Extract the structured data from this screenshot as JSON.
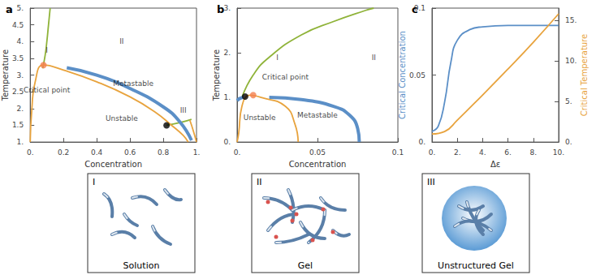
{
  "chart_data": [
    {
      "title": "a",
      "type": "line",
      "x_label": "Concentration",
      "y_label": "Temperature",
      "xlim": [
        0,
        1
      ],
      "ylim": [
        1,
        5
      ],
      "xticks": [
        {
          "value": 0,
          "label": "0."
        },
        0.2,
        0.4,
        0.6,
        0.8,
        {
          "value": 1,
          "label": "1."
        }
      ],
      "yticks": [
        {
          "value": 1,
          "label": "1."
        },
        1.5,
        {
          "value": 2,
          "label": "2."
        },
        2.5,
        {
          "value": 3,
          "label": "3."
        },
        3.5,
        {
          "value": 4,
          "label": "4."
        },
        4.5,
        {
          "value": 5,
          "label": "5."
        }
      ],
      "series": [
        {
          "color": "#8fb339",
          "x": [
            0.075,
            0.09,
            0.1,
            0.11,
            0.12
          ],
          "values": [
            3.2,
            3.6,
            4.0,
            4.5,
            5.0
          ]
        },
        {
          "color": "#8fb339",
          "x": [
            0.82,
            0.9,
            0.97
          ],
          "values": [
            1.5,
            1.58,
            1.68
          ]
        },
        {
          "color": "#e8a33d",
          "x": [
            0.0,
            0.01,
            0.03,
            0.08,
            0.2,
            0.4,
            0.6,
            0.75,
            0.85,
            0.92,
            0.95
          ],
          "values": [
            1.0,
            2.0,
            2.8,
            3.3,
            3.15,
            2.8,
            2.35,
            1.9,
            1.5,
            1.2,
            1.0
          ]
        },
        {
          "color": "#e8a33d",
          "x": [
            0.96,
            0.98,
            1.0
          ],
          "values": [
            1.65,
            1.35,
            1.0
          ]
        },
        {
          "color": "#5b8fc7",
          "line_style": "thick",
          "x": [
            0.22,
            0.4,
            0.6,
            0.8,
            0.9,
            0.97
          ],
          "values": [
            3.22,
            3.0,
            2.6,
            2.05,
            1.6,
            1.05
          ]
        },
        {
          "type": "scatter",
          "color": "#f47f4f",
          "x": [
            0.08
          ],
          "values": [
            3.3
          ]
        },
        {
          "type": "scatter",
          "color": "#000000",
          "x": [
            0.82
          ],
          "values": [
            1.5
          ]
        }
      ],
      "annotations": [
        {
          "text": "I",
          "x": 0.1,
          "y": 3.75
        },
        {
          "text": "II",
          "x": 0.55,
          "y": 4.0
        },
        {
          "text": "III",
          "x": 0.92,
          "y": 1.95
        },
        {
          "text": "Critical point",
          "x": 0.1,
          "y": 2.55
        },
        {
          "text": "Metastable",
          "x": 0.62,
          "y": 2.75
        },
        {
          "text": "Unstable",
          "x": 0.55,
          "y": 1.7
        }
      ]
    },
    {
      "title": "b",
      "type": "line",
      "x_label": "Concentration",
      "y_label": "Temperature",
      "xlim": [
        0,
        0.1
      ],
      "ylim": [
        0,
        3
      ],
      "xticks": [
        {
          "value": 0,
          "label": "0."
        },
        0.05,
        0.1
      ],
      "yticks": [
        {
          "value": 0,
          "label": "0."
        },
        {
          "value": 1,
          "label": "1."
        },
        {
          "value": 2,
          "label": "2."
        },
        {
          "value": 3,
          "label": "3."
        }
      ],
      "series": [
        {
          "color": "#8fb339",
          "x": [
            0.003,
            0.01,
            0.02,
            0.04,
            0.06,
            0.08,
            0.085
          ],
          "values": [
            1.0,
            1.5,
            1.9,
            2.4,
            2.7,
            2.95,
            3.0
          ]
        },
        {
          "color": "#e8a33d",
          "x": [
            0.0,
            0.001,
            0.003,
            0.008,
            0.015,
            0.03,
            0.036,
            0.038
          ],
          "values": [
            0.0,
            0.2,
            0.8,
            1.05,
            1.0,
            0.8,
            0.4,
            0.0
          ]
        },
        {
          "color": "#5b8fc7",
          "line_style": "thick",
          "x": [
            0.0,
            0.002,
            0.004
          ],
          "values": [
            0.93,
            0.98,
            1.0
          ]
        },
        {
          "color": "#5b8fc7",
          "line_style": "thick",
          "x": [
            0.02,
            0.04,
            0.06,
            0.07,
            0.075,
            0.076
          ],
          "values": [
            1.0,
            0.95,
            0.8,
            0.6,
            0.3,
            0.0
          ]
        },
        {
          "type": "scatter",
          "color": "#f47f4f",
          "x": [
            0.01
          ],
          "values": [
            1.05
          ]
        },
        {
          "type": "scatter",
          "color": "#000000",
          "x": [
            0.005
          ],
          "values": [
            1.02
          ]
        }
      ],
      "annotations": [
        {
          "text": "I",
          "x": 0.025,
          "y": 1.9
        },
        {
          "text": "II",
          "x": 0.085,
          "y": 1.9
        },
        {
          "text": "Critical point",
          "x": 0.03,
          "y": 1.45
        },
        {
          "text": "Unstable",
          "x": 0.014,
          "y": 0.55
        },
        {
          "text": "Metastable",
          "x": 0.05,
          "y": 0.6
        }
      ]
    },
    {
      "title": "c",
      "type": "line",
      "x_label": "Δε",
      "y_label": "Critical Concentration",
      "y2_label": "Critical Temperature",
      "xlim": [
        0,
        10
      ],
      "ylim": [
        0,
        0.1
      ],
      "y2lim": [
        0,
        16.5
      ],
      "xticks": [
        {
          "value": 0,
          "label": "0."
        },
        {
          "value": 2,
          "label": "2."
        },
        {
          "value": 4,
          "label": "4."
        },
        {
          "value": 6,
          "label": "6."
        },
        {
          "value": 8,
          "label": "8."
        },
        {
          "value": 10,
          "label": "10."
        }
      ],
      "yticks": [
        {
          "value": 0,
          "label": "0."
        },
        0.05,
        0.1
      ],
      "y2ticks": [
        {
          "value": 0,
          "label": "0."
        },
        {
          "value": 5,
          "label": "5."
        },
        {
          "value": 10,
          "label": "10."
        },
        {
          "value": 15,
          "label": "15."
        }
      ],
      "series": [
        {
          "color": "#5b8fc7",
          "x": [
            0,
            0.5,
            1,
            1.5,
            2,
            3,
            4,
            6,
            8,
            10
          ],
          "values": [
            0.008,
            0.012,
            0.03,
            0.06,
            0.076,
            0.084,
            0.086,
            0.087,
            0.087,
            0.087
          ]
        },
        {
          "color": "#e8a33d",
          "axis": "y2",
          "x": [
            0,
            1,
            2,
            4,
            6,
            8,
            10
          ],
          "values": [
            1.0,
            1.3,
            2.7,
            5.8,
            9.0,
            12.3,
            15.8
          ]
        }
      ],
      "annotations": []
    }
  ],
  "panels": [
    {
      "label": "I",
      "caption": "Solution"
    },
    {
      "label": "II",
      "caption": "Gel"
    },
    {
      "label": "III",
      "caption": "Unstructured Gel"
    }
  ]
}
